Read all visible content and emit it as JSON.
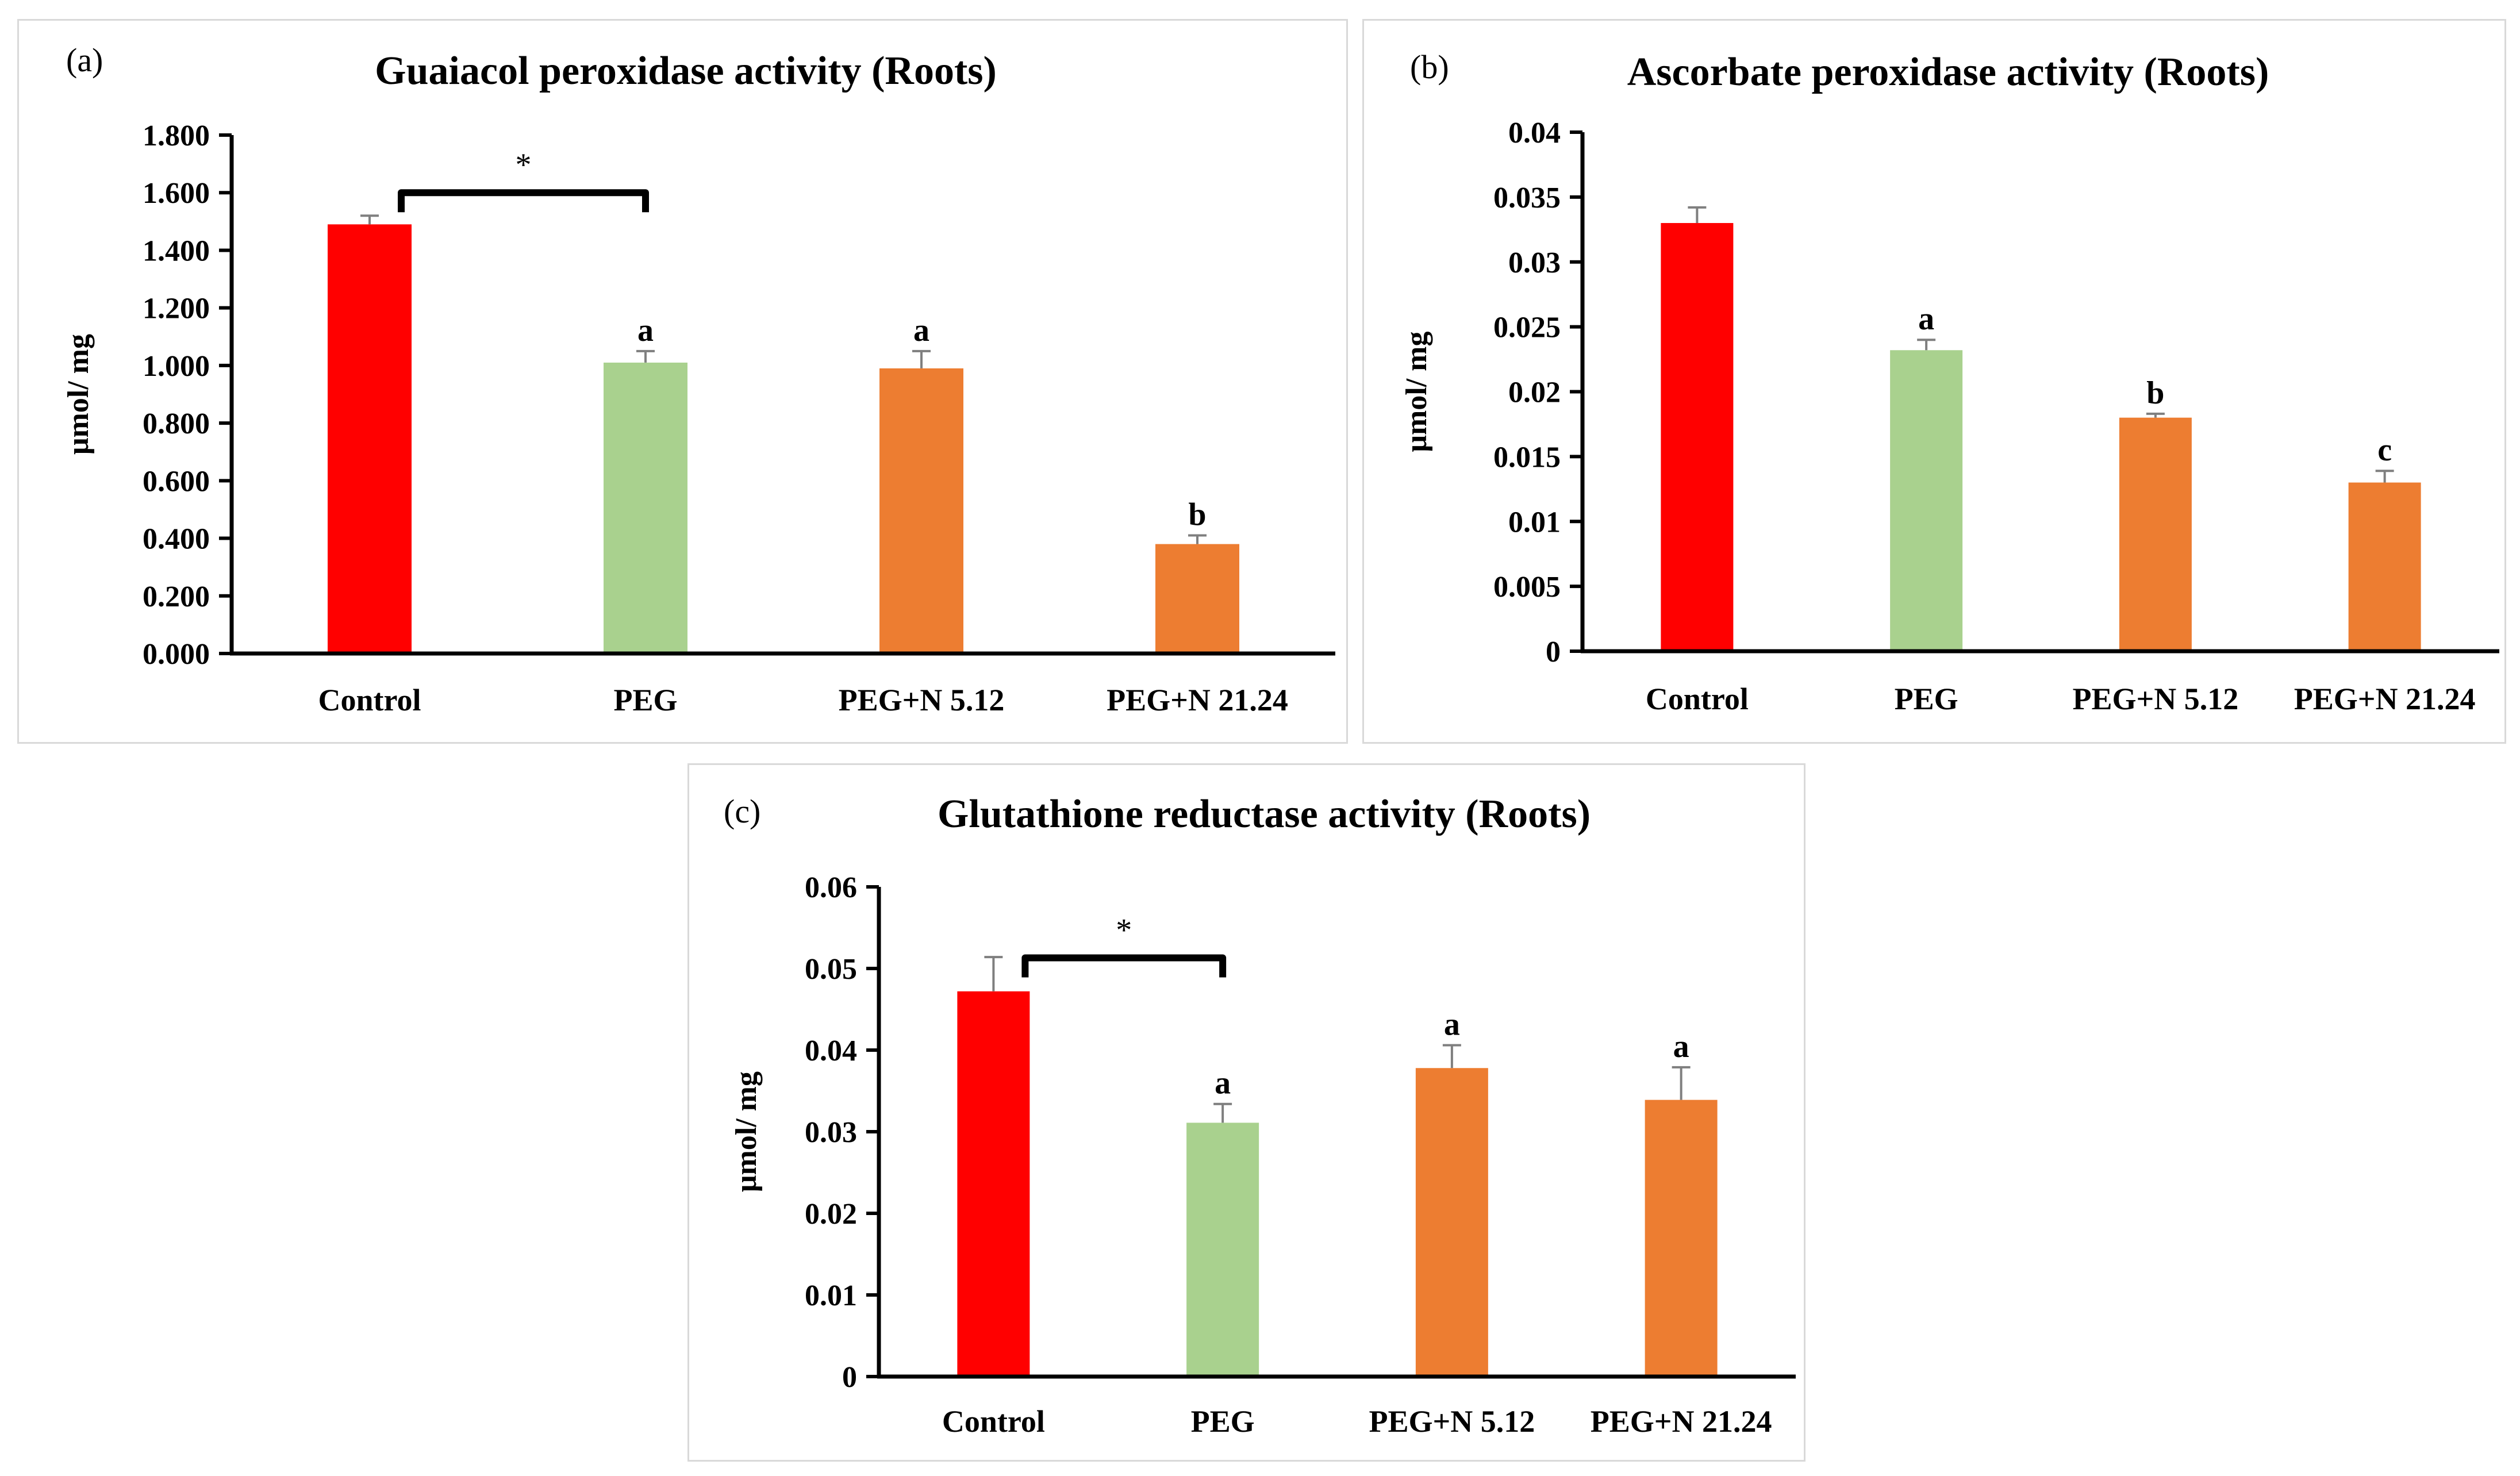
{
  "colors": {
    "control": "#ff0000",
    "peg": "#a9d18e",
    "treatment": "#ed7d31",
    "axis": "#000000",
    "error_bar": "#7f7f7f",
    "border": "#d9d9d9"
  },
  "chart_data": [
    {
      "type": "bar",
      "panel_label": "(a)",
      "title": "Guaiacol peroxidase activity (Roots)",
      "ylabel": "μmol/ mg",
      "xlabel": "",
      "categories": [
        "Control",
        "PEG",
        "PEG+N 5.12",
        "PEG+N 21.24"
      ],
      "values": [
        1.49,
        1.01,
        0.99,
        0.38
      ],
      "errors": [
        0.03,
        0.04,
        0.06,
        0.03
      ],
      "bar_colors": [
        "#ff0000",
        "#a9d18e",
        "#ed7d31",
        "#ed7d31"
      ],
      "significance_letters": [
        "",
        "a",
        "a",
        "b"
      ],
      "bracket": {
        "from": 0,
        "to": 1,
        "label": "*",
        "y": 1.6
      },
      "ylim": [
        0,
        1.8
      ],
      "yticks": [
        0,
        0.2,
        0.4,
        0.6,
        0.8,
        1.0,
        1.2,
        1.4,
        1.6,
        1.8
      ],
      "ytick_labels": [
        "0.000",
        "0.200",
        "0.400",
        "0.600",
        "0.800",
        "1.000",
        "1.200",
        "1.400",
        "1.600",
        "1.800"
      ],
      "grid": false,
      "legend": "none"
    },
    {
      "type": "bar",
      "panel_label": "(b)",
      "title": "Ascorbate peroxidase activity (Roots)",
      "ylabel": "μmol/ mg",
      "xlabel": "",
      "categories": [
        "Control",
        "PEG",
        "PEG+N 5.12",
        "PEG+N 21.24"
      ],
      "values": [
        0.033,
        0.0232,
        0.018,
        0.013
      ],
      "errors": [
        0.0012,
        0.0008,
        0.0003,
        0.0009
      ],
      "bar_colors": [
        "#ff0000",
        "#a9d18e",
        "#ed7d31",
        "#ed7d31"
      ],
      "significance_letters": [
        "",
        "a",
        "b",
        "c"
      ],
      "bracket": null,
      "ylim": [
        0,
        0.04
      ],
      "yticks": [
        0,
        0.005,
        0.01,
        0.015,
        0.02,
        0.025,
        0.03,
        0.035,
        0.04
      ],
      "ytick_labels": [
        "0",
        "0.005",
        "0.01",
        "0.015",
        "0.02",
        "0.025",
        "0.03",
        "0.035",
        "0.04"
      ],
      "grid": false,
      "legend": "none"
    },
    {
      "type": "bar",
      "panel_label": "(c)",
      "title": "Glutathione reductase activity (Roots)",
      "ylabel": "μmol/ mg",
      "xlabel": "",
      "categories": [
        "Control",
        "PEG",
        "PEG+N 5.12",
        "PEG+N 21.24"
      ],
      "values": [
        0.0472,
        0.0311,
        0.0378,
        0.0339
      ],
      "errors": [
        0.0042,
        0.0023,
        0.0028,
        0.004
      ],
      "bar_colors": [
        "#ff0000",
        "#a9d18e",
        "#ed7d31",
        "#ed7d31"
      ],
      "significance_letters": [
        "",
        "a",
        "a",
        "a"
      ],
      "bracket": {
        "from": 0,
        "to": 1,
        "label": "*",
        "y": 0.0513
      },
      "ylim": [
        0,
        0.06
      ],
      "yticks": [
        0,
        0.01,
        0.02,
        0.03,
        0.04,
        0.05,
        0.06
      ],
      "ytick_labels": [
        "0",
        "0.01",
        "0.02",
        "0.03",
        "0.04",
        "0.05",
        "0.06"
      ],
      "grid": false,
      "legend": "none"
    }
  ]
}
